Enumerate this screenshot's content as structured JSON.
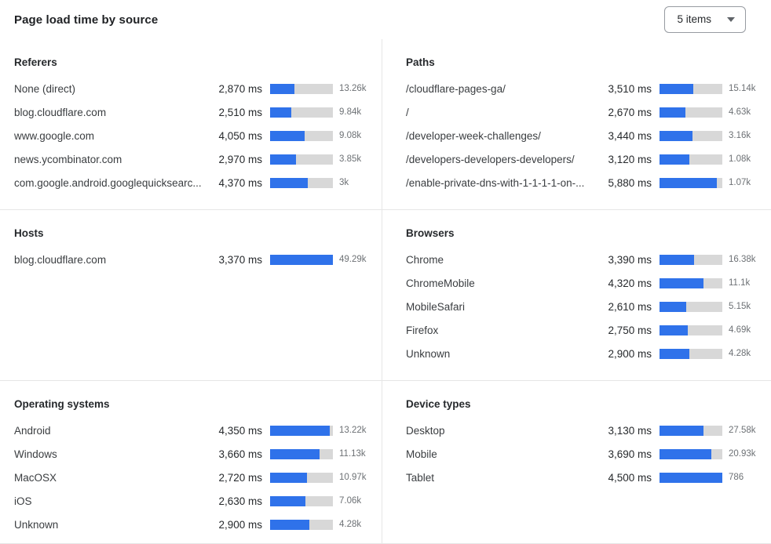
{
  "header": {
    "title": "Page load time by source",
    "items_select": {
      "value": "5 items",
      "icon": "chevron-down-icon"
    }
  },
  "colors": {
    "bar_fill": "#2f72ea",
    "bar_track": "#d8d8d8",
    "divider": "#e6e6e6",
    "count_text": "#6d7175"
  },
  "sections": [
    {
      "id": "referers",
      "title": "Referers",
      "rows": [
        {
          "label": "None (direct)",
          "value": "2,870 ms",
          "count": "13.26k",
          "bar_pct": 39
        },
        {
          "label": "blog.cloudflare.com",
          "value": "2,510 ms",
          "count": "9.84k",
          "bar_pct": 34
        },
        {
          "label": "www.google.com",
          "value": "4,050 ms",
          "count": "9.08k",
          "bar_pct": 55
        },
        {
          "label": "news.ycombinator.com",
          "value": "2,970 ms",
          "count": "3.85k",
          "bar_pct": 41
        },
        {
          "label": "com.google.android.googlequicksearc...",
          "value": "4,370 ms",
          "count": "3k",
          "bar_pct": 60
        }
      ]
    },
    {
      "id": "paths",
      "title": "Paths",
      "rows": [
        {
          "label": "/cloudflare-pages-ga/",
          "value": "3,510 ms",
          "count": "15.14k",
          "bar_pct": 54
        },
        {
          "label": "/",
          "value": "2,670 ms",
          "count": "4.63k",
          "bar_pct": 41
        },
        {
          "label": "/developer-week-challenges/",
          "value": "3,440 ms",
          "count": "3.16k",
          "bar_pct": 53
        },
        {
          "label": "/developers-developers-developers/",
          "value": "3,120 ms",
          "count": "1.08k",
          "bar_pct": 48
        },
        {
          "label": "/enable-private-dns-with-1-1-1-1-on-...",
          "value": "5,880 ms",
          "count": "1.07k",
          "bar_pct": 91
        }
      ]
    },
    {
      "id": "hosts",
      "title": "Hosts",
      "rows": [
        {
          "label": "blog.cloudflare.com",
          "value": "3,370 ms",
          "count": "49.29k",
          "bar_pct": 100
        }
      ]
    },
    {
      "id": "browsers",
      "title": "Browsers",
      "rows": [
        {
          "label": "Chrome",
          "value": "3,390 ms",
          "count": "16.38k",
          "bar_pct": 55
        },
        {
          "label": "ChromeMobile",
          "value": "4,320 ms",
          "count": "11.1k",
          "bar_pct": 70
        },
        {
          "label": "MobileSafari",
          "value": "2,610 ms",
          "count": "5.15k",
          "bar_pct": 42
        },
        {
          "label": "Firefox",
          "value": "2,750 ms",
          "count": "4.69k",
          "bar_pct": 45
        },
        {
          "label": "Unknown",
          "value": "2,900 ms",
          "count": "4.28k",
          "bar_pct": 47
        }
      ]
    },
    {
      "id": "operating-systems",
      "title": "Operating systems",
      "rows": [
        {
          "label": "Android",
          "value": "4,350 ms",
          "count": "13.22k",
          "bar_pct": 95
        },
        {
          "label": "Windows",
          "value": "3,660 ms",
          "count": "11.13k",
          "bar_pct": 79
        },
        {
          "label": "MacOSX",
          "value": "2,720 ms",
          "count": "10.97k",
          "bar_pct": 59
        },
        {
          "label": "iOS",
          "value": "2,630 ms",
          "count": "7.06k",
          "bar_pct": 56
        },
        {
          "label": "Unknown",
          "value": "2,900 ms",
          "count": "4.28k",
          "bar_pct": 63
        }
      ]
    },
    {
      "id": "device-types",
      "title": "Device types",
      "rows": [
        {
          "label": "Desktop",
          "value": "3,130 ms",
          "count": "27.58k",
          "bar_pct": 70
        },
        {
          "label": "Mobile",
          "value": "3,690 ms",
          "count": "20.93k",
          "bar_pct": 82
        },
        {
          "label": "Tablet",
          "value": "4,500 ms",
          "count": "786",
          "bar_pct": 100
        }
      ]
    }
  ],
  "chart_data": [
    {
      "type": "bar",
      "title": "Referers",
      "categories": [
        "None (direct)",
        "blog.cloudflare.com",
        "www.google.com",
        "news.ycombinator.com",
        "com.google.android.googlequicksearc..."
      ],
      "series": [
        {
          "name": "load_time_ms",
          "values": [
            2870,
            2510,
            4050,
            2970,
            4370
          ]
        },
        {
          "name": "count",
          "values": [
            "13.26k",
            "9.84k",
            "9.08k",
            "3.85k",
            "3k"
          ]
        }
      ]
    },
    {
      "type": "bar",
      "title": "Paths",
      "categories": [
        "/cloudflare-pages-ga/",
        "/",
        "/developer-week-challenges/",
        "/developers-developers-developers/",
        "/enable-private-dns-with-1-1-1-1-on-..."
      ],
      "series": [
        {
          "name": "load_time_ms",
          "values": [
            3510,
            2670,
            3440,
            3120,
            5880
          ]
        },
        {
          "name": "count",
          "values": [
            "15.14k",
            "4.63k",
            "3.16k",
            "1.08k",
            "1.07k"
          ]
        }
      ]
    },
    {
      "type": "bar",
      "title": "Hosts",
      "categories": [
        "blog.cloudflare.com"
      ],
      "series": [
        {
          "name": "load_time_ms",
          "values": [
            3370
          ]
        },
        {
          "name": "count",
          "values": [
            "49.29k"
          ]
        }
      ]
    },
    {
      "type": "bar",
      "title": "Browsers",
      "categories": [
        "Chrome",
        "ChromeMobile",
        "MobileSafari",
        "Firefox",
        "Unknown"
      ],
      "series": [
        {
          "name": "load_time_ms",
          "values": [
            3390,
            4320,
            2610,
            2750,
            2900
          ]
        },
        {
          "name": "count",
          "values": [
            "16.38k",
            "11.1k",
            "5.15k",
            "4.69k",
            "4.28k"
          ]
        }
      ]
    },
    {
      "type": "bar",
      "title": "Operating systems",
      "categories": [
        "Android",
        "Windows",
        "MacOSX",
        "iOS",
        "Unknown"
      ],
      "series": [
        {
          "name": "load_time_ms",
          "values": [
            4350,
            3660,
            2720,
            2630,
            2900
          ]
        },
        {
          "name": "count",
          "values": [
            "13.22k",
            "11.13k",
            "10.97k",
            "7.06k",
            "4.28k"
          ]
        }
      ]
    },
    {
      "type": "bar",
      "title": "Device types",
      "categories": [
        "Desktop",
        "Mobile",
        "Tablet"
      ],
      "series": [
        {
          "name": "load_time_ms",
          "values": [
            3130,
            3690,
            4500
          ]
        },
        {
          "name": "count",
          "values": [
            "27.58k",
            "20.93k",
            "786"
          ]
        }
      ]
    }
  ]
}
